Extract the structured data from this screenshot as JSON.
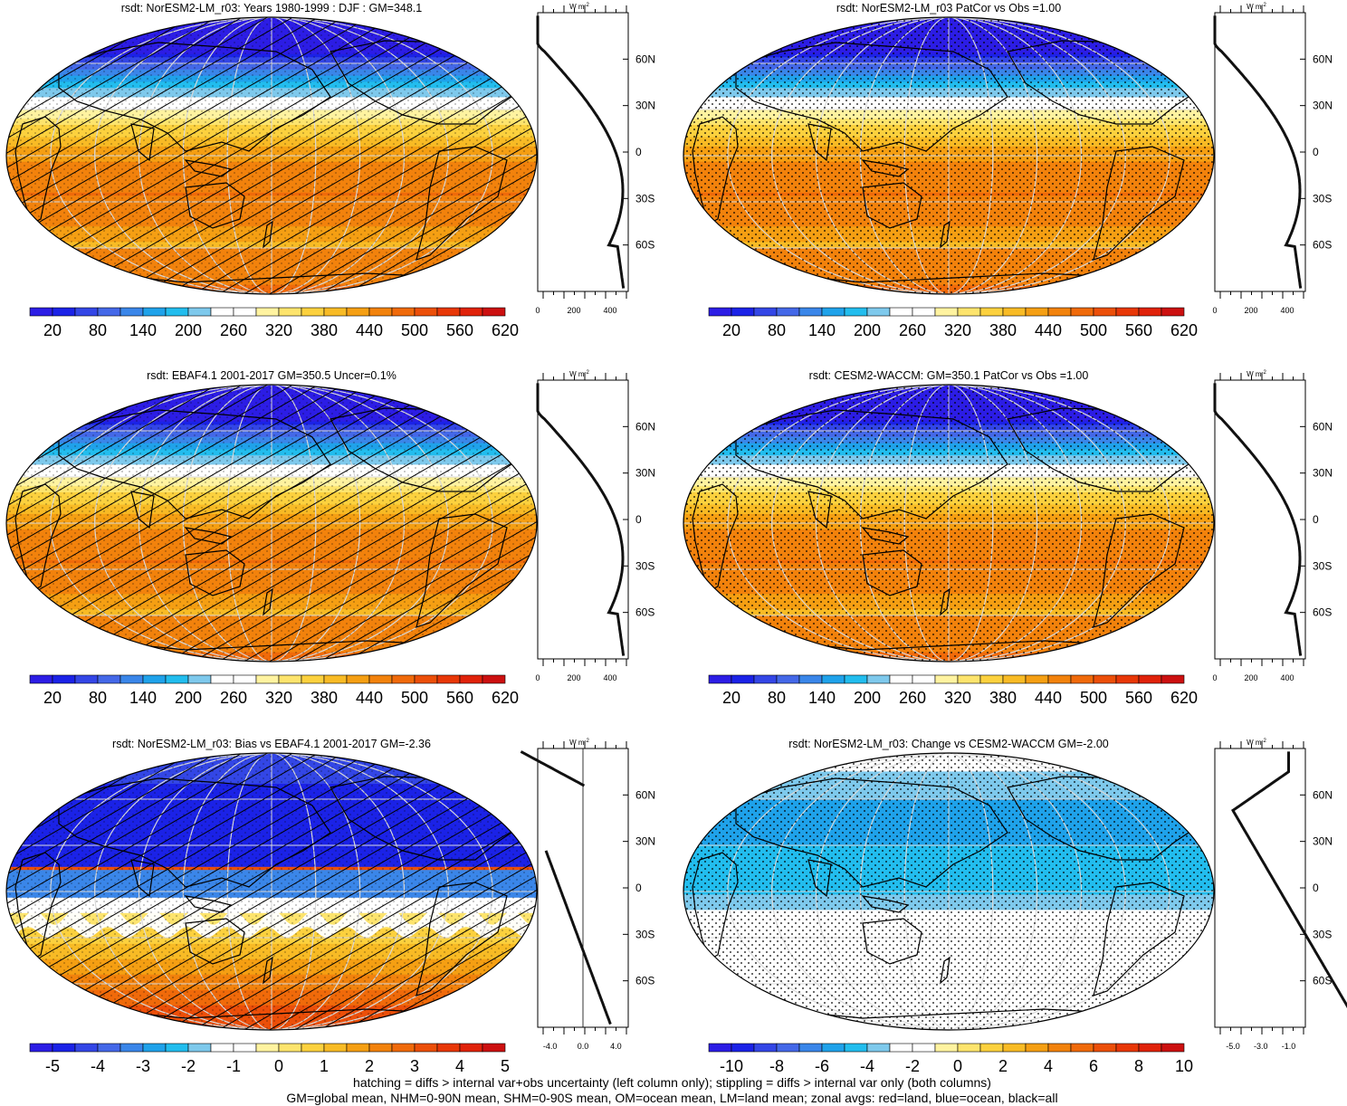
{
  "panels": [
    {
      "title": "rsdt: NorESM2-LM_r03: Years 1980-1999 : DJF : GM=348.1",
      "map": "abs",
      "hatch": true,
      "stipple": true,
      "cbar_labels": [
        "20",
        "80",
        "140",
        "200",
        "260",
        "320",
        "380",
        "440",
        "500",
        "560",
        "620"
      ],
      "zonal": {
        "kind": "abs",
        "xticks": [
          "0",
          "200",
          "400"
        ],
        "units": "W m-2"
      }
    },
    {
      "title": "rsdt: NorESM2-LM_r03 PatCor vs Obs =1.00",
      "map": "abs",
      "hatch": false,
      "stipple": true,
      "cbar_labels": [
        "20",
        "80",
        "140",
        "200",
        "260",
        "320",
        "380",
        "440",
        "500",
        "560",
        "620"
      ],
      "zonal": {
        "kind": "abs",
        "xticks": [
          "0",
          "200",
          "400"
        ],
        "units": "W m-2"
      }
    },
    {
      "title": "rsdt: EBAF4.1 2001-2017 GM=350.5 Uncer=0.1%",
      "map": "abs",
      "hatch": true,
      "stipple": true,
      "cbar_labels": [
        "20",
        "80",
        "140",
        "200",
        "260",
        "320",
        "380",
        "440",
        "500",
        "560",
        "620"
      ],
      "zonal": {
        "kind": "abs",
        "xticks": [
          "0",
          "200",
          "400"
        ],
        "units": "W m-2"
      }
    },
    {
      "title": "rsdt: CESM2-WACCM: GM=350.1 PatCor vs Obs =1.00",
      "map": "abs",
      "hatch": false,
      "stipple": true,
      "cbar_labels": [
        "20",
        "80",
        "140",
        "200",
        "260",
        "320",
        "380",
        "440",
        "500",
        "560",
        "620"
      ],
      "zonal": {
        "kind": "abs",
        "xticks": [
          "0",
          "200",
          "400"
        ],
        "units": "W m-2"
      }
    },
    {
      "title": "rsdt: NorESM2-LM_r03: Bias vs EBAF4.1 2001-2017 GM=-2.36",
      "map": "bias",
      "hatch": true,
      "stipple": true,
      "cbar_labels": [
        "-5",
        "-4",
        "-3",
        "-2",
        "-1",
        "0",
        "1",
        "2",
        "3",
        "4",
        "5"
      ],
      "zonal": {
        "kind": "bias",
        "xticks": [
          "-4.0",
          "0.0",
          "4.0"
        ],
        "units": "W m-2"
      }
    },
    {
      "title": "rsdt: NorESM2-LM_r03: Change vs CESM2-WACCM GM=-2.00",
      "map": "change",
      "hatch": false,
      "stipple": true,
      "cbar_labels": [
        "-10",
        "-8",
        "-6",
        "-4",
        "-2",
        "0",
        "2",
        "4",
        "6",
        "8",
        "10"
      ],
      "zonal": {
        "kind": "change",
        "xticks": [
          "-5.0",
          "-3.0",
          "-1.0"
        ],
        "units": "W m-2"
      }
    }
  ],
  "lat_labels": [
    "60N",
    "30N",
    "0",
    "30S",
    "60S"
  ],
  "colors": {
    "palette": [
      "#2c1de5",
      "#1b22e7",
      "#3346e6",
      "#4468e8",
      "#3a86e9",
      "#1fa2ea",
      "#22bdee",
      "#7ec9ec",
      "#ffffff",
      "#ffffff",
      "#fff3a0",
      "#fde46d",
      "#fcd13e",
      "#f8bb25",
      "#f59f13",
      "#f2820c",
      "#f06a0a",
      "#ec4f09",
      "#e83707",
      "#e0220a",
      "#cc1010"
    ]
  },
  "footer": [
    "hatching = diffs > internal var+obs uncertainty (left column only); stippling = diffs > internal var only (both columns)",
    "GM=global mean, NHM=0-90N mean, SHM=0-90S mean, OM=ocean mean, LM=land mean; zonal avgs: red=land, blue=ocean, black=all"
  ]
}
